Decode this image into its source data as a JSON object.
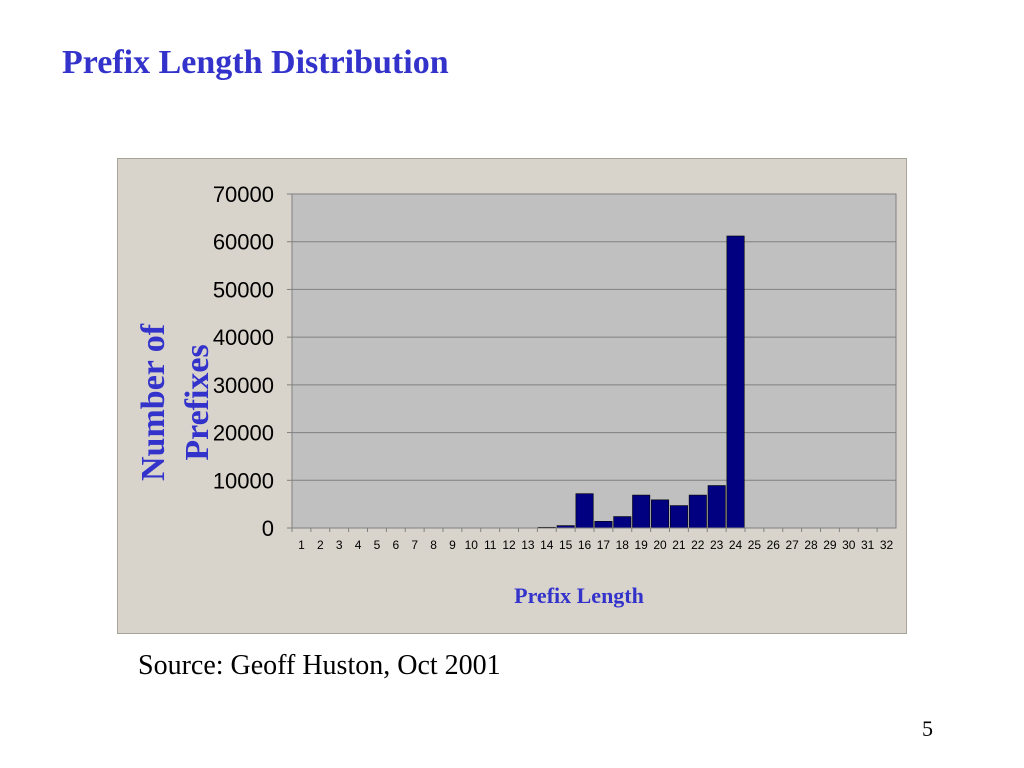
{
  "slide": {
    "title": "Prefix Length Distribution",
    "source": "Source: Geoff Huston, Oct 2001",
    "page_number": "5"
  },
  "colors": {
    "title": "#3333cc",
    "bar": "#000080",
    "plot_background": "#c0c0c0",
    "panel_background": "#d9d4cb"
  },
  "chart_data": {
    "type": "bar",
    "title": "",
    "xlabel": "Prefix Length",
    "ylabel": "Number of Prefixes",
    "ylabel_lines": [
      "Number of",
      "Prefixes"
    ],
    "categories": [
      "1",
      "2",
      "3",
      "4",
      "5",
      "6",
      "7",
      "8",
      "9",
      "10",
      "11",
      "12",
      "13",
      "14",
      "15",
      "16",
      "17",
      "18",
      "19",
      "20",
      "21",
      "22",
      "23",
      "24",
      "25",
      "26",
      "27",
      "28",
      "29",
      "30",
      "31",
      "32"
    ],
    "values": [
      0,
      0,
      0,
      0,
      0,
      0,
      0,
      0,
      0,
      0,
      0,
      0,
      0,
      150,
      500,
      7200,
      1400,
      2400,
      6900,
      5900,
      4700,
      6900,
      8900,
      61200,
      0,
      0,
      0,
      0,
      0,
      0,
      0,
      0
    ],
    "ylim": [
      0,
      70000
    ],
    "yticks": [
      "0",
      "10000",
      "20000",
      "30000",
      "40000",
      "50000",
      "60000",
      "70000"
    ],
    "grid": true,
    "legend": "none"
  }
}
